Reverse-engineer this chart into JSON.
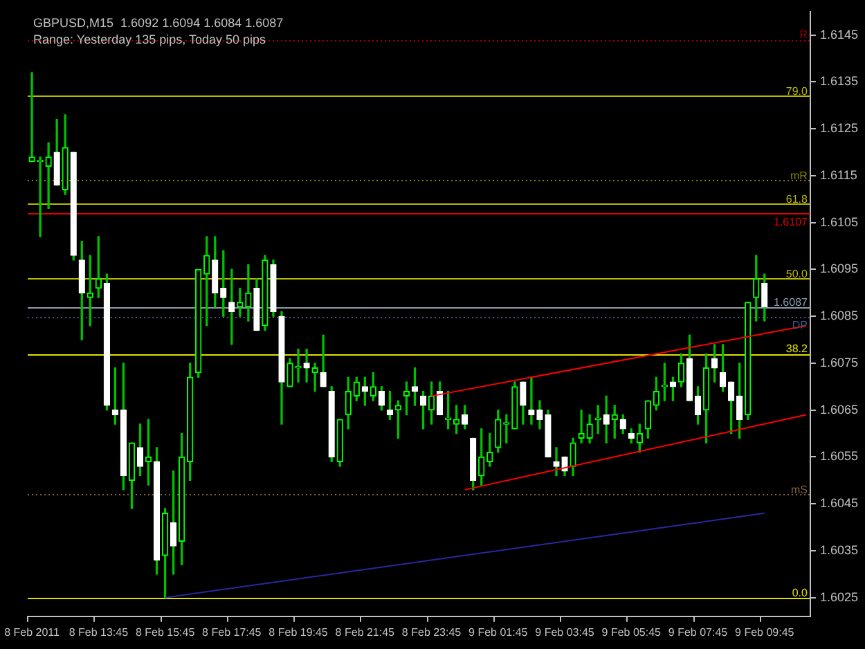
{
  "chart_data": {
    "type": "candlestick",
    "title": "GBPUSD,M15  1.6092 1.6094 1.6084 1.6087",
    "subtitle": "Range: Yesterday 135 pips, Today 50 pips",
    "categories": [
      "8 Feb 2011",
      null,
      null,
      null,
      null,
      null,
      null,
      null,
      "8 Feb 13:45",
      null,
      null,
      null,
      null,
      null,
      null,
      null,
      "8 Feb 15:45",
      null,
      null,
      null,
      null,
      null,
      null,
      null,
      "8 Feb 17:45",
      null,
      null,
      null,
      null,
      null,
      null,
      null,
      "8 Feb 19:45",
      null,
      null,
      null,
      null,
      null,
      null,
      null,
      "8 Feb 21:45",
      null,
      null,
      null,
      null,
      null,
      null,
      null,
      "8 Feb 23:45",
      null,
      null,
      null,
      null,
      null,
      null,
      null,
      "9 Feb 01:45",
      null,
      null,
      null,
      null,
      null,
      null,
      null,
      "9 Feb 03:45",
      null,
      null,
      null,
      null,
      null,
      null,
      null,
      "9 Feb 05:45",
      null,
      null,
      null,
      null,
      null,
      null,
      null,
      "9 Feb 07:45",
      null,
      null,
      null,
      null,
      null,
      null,
      null,
      "9 Feb 09:45",
      null,
      null,
      null,
      null,
      null
    ],
    "ohlc": [
      [
        1.6118,
        1.6137,
        1.6118,
        1.6119
      ],
      [
        1.6118,
        1.6119,
        1.6102,
        1.6118
      ],
      [
        1.6117,
        1.6122,
        1.6108,
        1.6119
      ],
      [
        1.612,
        1.6127,
        1.6113,
        1.6113
      ],
      [
        1.6112,
        1.6128,
        1.6111,
        1.6121
      ],
      [
        1.612,
        1.612,
        1.6097,
        1.6098
      ],
      [
        1.6097,
        1.6101,
        1.608,
        1.609
      ],
      [
        1.6089,
        1.6098,
        1.6083,
        1.609
      ],
      [
        1.6091,
        1.6102,
        1.6089,
        1.6093
      ],
      [
        1.6092,
        1.6094,
        1.6065,
        1.6066
      ],
      [
        1.6065,
        1.6074,
        1.6062,
        1.6064
      ],
      [
        1.6065,
        1.6075,
        1.6048,
        1.6051
      ],
      [
        1.605,
        1.6058,
        1.6044,
        1.6058
      ],
      [
        1.6057,
        1.6062,
        1.6051,
        1.6053
      ],
      [
        1.6054,
        1.6063,
        1.6049,
        1.6055
      ],
      [
        1.6054,
        1.6057,
        1.603,
        1.6033
      ],
      [
        1.6034,
        1.6044,
        1.6025,
        1.6043
      ],
      [
        1.6041,
        1.6052,
        1.603,
        1.6036
      ],
      [
        1.6037,
        1.606,
        1.6032,
        1.6055
      ],
      [
        1.6054,
        1.6075,
        1.605,
        1.6072
      ],
      [
        1.6073,
        1.6095,
        1.6072,
        1.6095
      ],
      [
        1.6094,
        1.6102,
        1.6083,
        1.6098
      ],
      [
        1.6097,
        1.6102,
        1.6087,
        1.609
      ],
      [
        1.6091,
        1.6099,
        1.6085,
        1.6089
      ],
      [
        1.6088,
        1.6095,
        1.6079,
        1.6086
      ],
      [
        1.6087,
        1.6091,
        1.6085,
        1.6088
      ],
      [
        1.6087,
        1.6096,
        1.6084,
        1.609
      ],
      [
        1.6091,
        1.6093,
        1.6082,
        1.6082
      ],
      [
        1.6083,
        1.6098,
        1.6082,
        1.6097
      ],
      [
        1.6096,
        1.6097,
        1.6085,
        1.6086
      ],
      [
        1.6085,
        1.6086,
        1.6062,
        1.6071
      ],
      [
        1.607,
        1.6076,
        1.607,
        1.6075
      ],
      [
        1.6074,
        1.6078,
        1.6071,
        1.6074
      ],
      [
        1.6075,
        1.6078,
        1.6071,
        1.6074
      ],
      [
        1.6073,
        1.6075,
        1.6069,
        1.6074
      ],
      [
        1.6073,
        1.6081,
        1.607,
        1.607
      ],
      [
        1.6069,
        1.607,
        1.6054,
        1.6055
      ],
      [
        1.6054,
        1.6063,
        1.6053,
        1.6063
      ],
      [
        1.6064,
        1.6072,
        1.6061,
        1.6069
      ],
      [
        1.6068,
        1.6072,
        1.6067,
        1.6071
      ],
      [
        1.607,
        1.6072,
        1.6066,
        1.6069
      ],
      [
        1.6068,
        1.6073,
        1.6067,
        1.607
      ],
      [
        1.6069,
        1.607,
        1.6065,
        1.6066
      ],
      [
        1.6065,
        1.6069,
        1.6063,
        1.6064
      ],
      [
        1.6065,
        1.6067,
        1.6059,
        1.6066
      ],
      [
        1.6068,
        1.6071,
        1.6064,
        1.6069
      ],
      [
        1.607,
        1.6074,
        1.6066,
        1.6069
      ],
      [
        1.6068,
        1.6069,
        1.6061,
        1.6066
      ],
      [
        1.6065,
        1.6071,
        1.6062,
        1.6068
      ],
      [
        1.6069,
        1.6071,
        1.6064,
        1.6064
      ],
      [
        1.6063,
        1.6069,
        1.6061,
        1.6063
      ],
      [
        1.6062,
        1.6066,
        1.606,
        1.6063
      ],
      [
        1.6064,
        1.6066,
        1.6061,
        1.6062
      ],
      [
        1.6059,
        1.6059,
        1.6048,
        1.605
      ],
      [
        1.6051,
        1.6061,
        1.6049,
        1.6055
      ],
      [
        1.6054,
        1.606,
        1.6053,
        1.6056
      ],
      [
        1.6057,
        1.6065,
        1.6056,
        1.6063
      ],
      [
        1.6062,
        1.6064,
        1.6058,
        1.6062
      ],
      [
        1.6061,
        1.6071,
        1.6061,
        1.607
      ],
      [
        1.6071,
        1.6071,
        1.6062,
        1.6066
      ],
      [
        1.6065,
        1.6072,
        1.6062,
        1.6064
      ],
      [
        1.6065,
        1.6067,
        1.6061,
        1.6063
      ],
      [
        1.6064,
        1.6065,
        1.6055,
        1.6055
      ],
      [
        1.6054,
        1.6057,
        1.6051,
        1.6053
      ],
      [
        1.6055,
        1.6055,
        1.6051,
        1.6052
      ],
      [
        1.6053,
        1.6059,
        1.6051,
        1.6058
      ],
      [
        1.6059,
        1.6065,
        1.6058,
        1.606
      ],
      [
        1.6059,
        1.6064,
        1.6058,
        1.6062
      ],
      [
        1.6063,
        1.6066,
        1.606,
        1.6063
      ],
      [
        1.6064,
        1.6068,
        1.6058,
        1.6062
      ],
      [
        1.6063,
        1.6066,
        1.6059,
        1.6064
      ],
      [
        1.6063,
        1.6064,
        1.606,
        1.6061
      ],
      [
        1.606,
        1.6061,
        1.6058,
        1.6059
      ],
      [
        1.6058,
        1.6062,
        1.6056,
        1.606
      ],
      [
        1.6061,
        1.6067,
        1.6059,
        1.6067
      ],
      [
        1.6066,
        1.6072,
        1.6065,
        1.6069
      ],
      [
        1.607,
        1.6075,
        1.6067,
        1.607
      ],
      [
        1.6071,
        1.6072,
        1.6067,
        1.607
      ],
      [
        1.6071,
        1.6077,
        1.607,
        1.6075
      ],
      [
        1.6076,
        1.6081,
        1.6067,
        1.6067
      ],
      [
        1.6068,
        1.607,
        1.6062,
        1.6064
      ],
      [
        1.6065,
        1.6077,
        1.6058,
        1.6074
      ],
      [
        1.6076,
        1.6079,
        1.6071,
        1.6074
      ],
      [
        1.6073,
        1.6079,
        1.6069,
        1.607
      ],
      [
        1.6071,
        1.6071,
        1.606,
        1.6067
      ],
      [
        1.6068,
        1.6075,
        1.6059,
        1.6063
      ],
      [
        1.6064,
        1.6088,
        1.6063,
        1.6088
      ],
      [
        1.6089,
        1.6098,
        1.6084,
        1.6093
      ],
      [
        1.6092,
        1.6094,
        1.6084,
        1.6087
      ],
      null,
      null,
      null,
      null,
      null
    ],
    "series": [
      {
        "type": "line",
        "color": "#ff0000",
        "values": [
          null,
          null,
          null,
          null,
          null,
          null,
          null,
          null,
          null,
          null,
          null,
          null,
          null,
          null,
          null,
          null,
          null,
          null,
          null,
          null,
          null,
          null,
          null,
          null,
          null,
          null,
          null,
          null,
          null,
          null,
          null,
          null,
          null,
          null,
          null,
          null,
          null,
          null,
          null,
          null,
          null,
          null,
          null,
          null,
          null,
          null,
          null,
          null,
          1.6068,
          null,
          null,
          null,
          null,
          null,
          null,
          null,
          null,
          null,
          null,
          null,
          null,
          null,
          null,
          null,
          null,
          null,
          null,
          null,
          null,
          null,
          null,
          null,
          null,
          null,
          null,
          null,
          null,
          null,
          null,
          null,
          null,
          null,
          null,
          null,
          null,
          null,
          null,
          null,
          null,
          null,
          null,
          null,
          null,
          1.6083
        ]
      },
      {
        "type": "line",
        "color": "#ff0000",
        "values": [
          null,
          null,
          null,
          null,
          null,
          null,
          null,
          null,
          null,
          null,
          null,
          null,
          null,
          null,
          null,
          null,
          null,
          null,
          null,
          null,
          null,
          null,
          null,
          null,
          null,
          null,
          null,
          null,
          null,
          null,
          null,
          null,
          null,
          null,
          null,
          null,
          null,
          null,
          null,
          null,
          null,
          null,
          null,
          null,
          null,
          null,
          null,
          null,
          null,
          null,
          null,
          null,
          1.6048,
          null,
          null,
          null,
          null,
          null,
          null,
          null,
          null,
          null,
          null,
          null,
          null,
          null,
          null,
          null,
          null,
          null,
          null,
          null,
          null,
          null,
          null,
          null,
          null,
          null,
          null,
          null,
          null,
          null,
          null,
          null,
          null,
          null,
          null,
          null,
          null,
          null,
          null,
          null,
          null,
          1.6064
        ]
      },
      {
        "type": "line",
        "color": "#2828a0",
        "values": [
          null,
          null,
          null,
          null,
          null,
          null,
          null,
          null,
          null,
          null,
          null,
          null,
          null,
          null,
          null,
          null,
          1.6025,
          null,
          null,
          null,
          null,
          null,
          null,
          null,
          null,
          null,
          null,
          null,
          null,
          null,
          null,
          null,
          null,
          null,
          null,
          null,
          null,
          null,
          null,
          null,
          null,
          null,
          null,
          null,
          null,
          null,
          null,
          null,
          null,
          null,
          null,
          null,
          null,
          null,
          null,
          null,
          null,
          null,
          null,
          null,
          null,
          null,
          null,
          null,
          null,
          null,
          null,
          null,
          null,
          null,
          null,
          null,
          null,
          null,
          null,
          null,
          null,
          null,
          null,
          null,
          null,
          null,
          null,
          null,
          null,
          null,
          null,
          null,
          1.6043,
          null,
          null,
          null,
          null,
          null
        ]
      }
    ],
    "ylim": [
      1.6021,
      1.615
    ],
    "yticks": [
      1.6025,
      1.6035,
      1.6045,
      1.6055,
      1.6065,
      1.6075,
      1.6085,
      1.6095,
      1.6105,
      1.6115,
      1.6125,
      1.6135,
      1.6145
    ],
    "ref_lines": [
      {
        "axis": "y",
        "value": 1.6144,
        "label": "R",
        "color": "#a00000",
        "line_style": "dotted"
      },
      {
        "axis": "y",
        "value": 1.6132,
        "color": "#b8b800"
      },
      {
        "axis": "y",
        "value": 1.6114,
        "label": "mR",
        "color": "#808000",
        "line_style": "dotted"
      },
      {
        "axis": "y",
        "value": 1.6109,
        "color": "#b8b800"
      },
      {
        "axis": "y",
        "value": 1.6107,
        "label": "1.6107",
        "color": "#e00000"
      },
      {
        "axis": "y",
        "value": 1.6093,
        "color": "#b8b800"
      },
      {
        "axis": "y",
        "value": 1.6087,
        "label": "1.6087",
        "color": "#8c9cac"
      },
      {
        "axis": "y",
        "value": 1.6085,
        "label": "DP",
        "color": "#3a5a80",
        "line_style": "dotted"
      },
      {
        "axis": "y",
        "value": 1.6077,
        "color": "#e0e000"
      },
      {
        "axis": "y",
        "value": 1.6047,
        "label": "mS",
        "color": "#806040",
        "line_style": "dotted"
      },
      {
        "axis": "y",
        "value": 1.6025,
        "color": "#e0e000"
      }
    ],
    "annotations": [
      {
        "text": "79.0",
        "y": 1.6132
      },
      {
        "text": "61.8",
        "y": 1.6109
      },
      {
        "text": "50.0",
        "y": 1.6093
      },
      {
        "text": "38.2",
        "y": 1.6077
      },
      {
        "text": "0.0",
        "y": 1.6025
      }
    ]
  }
}
